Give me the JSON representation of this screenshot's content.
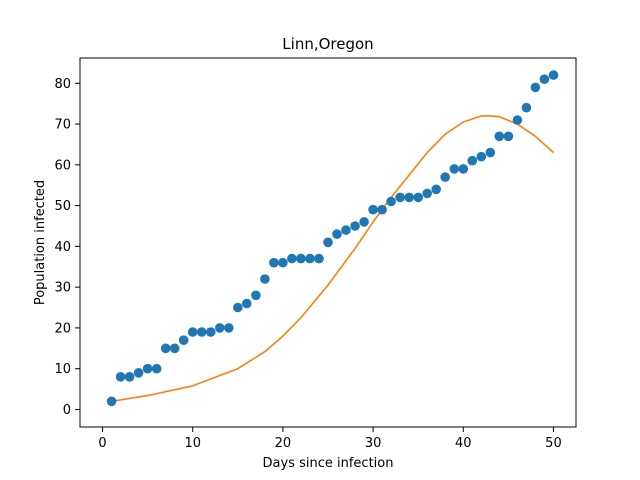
{
  "chart_data": {
    "type": "scatter",
    "title": "Linn,Oregon",
    "xlabel": "Days since infection",
    "ylabel": "Population infected",
    "xlim": [
      -2.5,
      52.5
    ],
    "ylim": [
      -4.3,
      86.2
    ],
    "xticks": [
      0,
      10,
      20,
      30,
      40,
      50
    ],
    "yticks": [
      0,
      10,
      20,
      30,
      40,
      50,
      60,
      70,
      80
    ],
    "grid": false,
    "series": [
      {
        "type": "scatter",
        "color": "#1f77b4",
        "x": [
          1,
          2,
          3,
          4,
          5,
          6,
          7,
          8,
          9,
          10,
          11,
          12,
          13,
          14,
          15,
          16,
          17,
          18,
          19,
          20,
          21,
          22,
          23,
          24,
          25,
          26,
          27,
          28,
          29,
          30,
          31,
          32,
          33,
          34,
          35,
          36,
          37,
          38,
          39,
          40,
          41,
          42,
          43,
          44,
          45,
          46,
          47,
          48,
          49,
          50
        ],
        "y": [
          2,
          8,
          8,
          9,
          10,
          10,
          15,
          15,
          17,
          19,
          19,
          19,
          20,
          20,
          25,
          26,
          28,
          32,
          36,
          36,
          37,
          37,
          37,
          37,
          41,
          43,
          44,
          45,
          46,
          49,
          49,
          51,
          52,
          52,
          52,
          53,
          54,
          57,
          59,
          59,
          61,
          62,
          63,
          67,
          67,
          71,
          74,
          79,
          81,
          82
        ]
      },
      {
        "type": "line",
        "color": "#ff7f0e",
        "x": [
          1,
          5,
          10,
          15,
          18,
          20,
          22,
          25,
          28,
          30,
          32,
          34,
          36,
          38,
          40,
          42,
          43,
          44,
          46,
          48,
          50
        ],
        "y": [
          2,
          3.4,
          5.8,
          10,
          14.2,
          18,
          22.5,
          30.5,
          39.5,
          46,
          52,
          57.5,
          63,
          67.5,
          70.5,
          72,
          72,
          71.8,
          70,
          67,
          63
        ]
      }
    ]
  }
}
